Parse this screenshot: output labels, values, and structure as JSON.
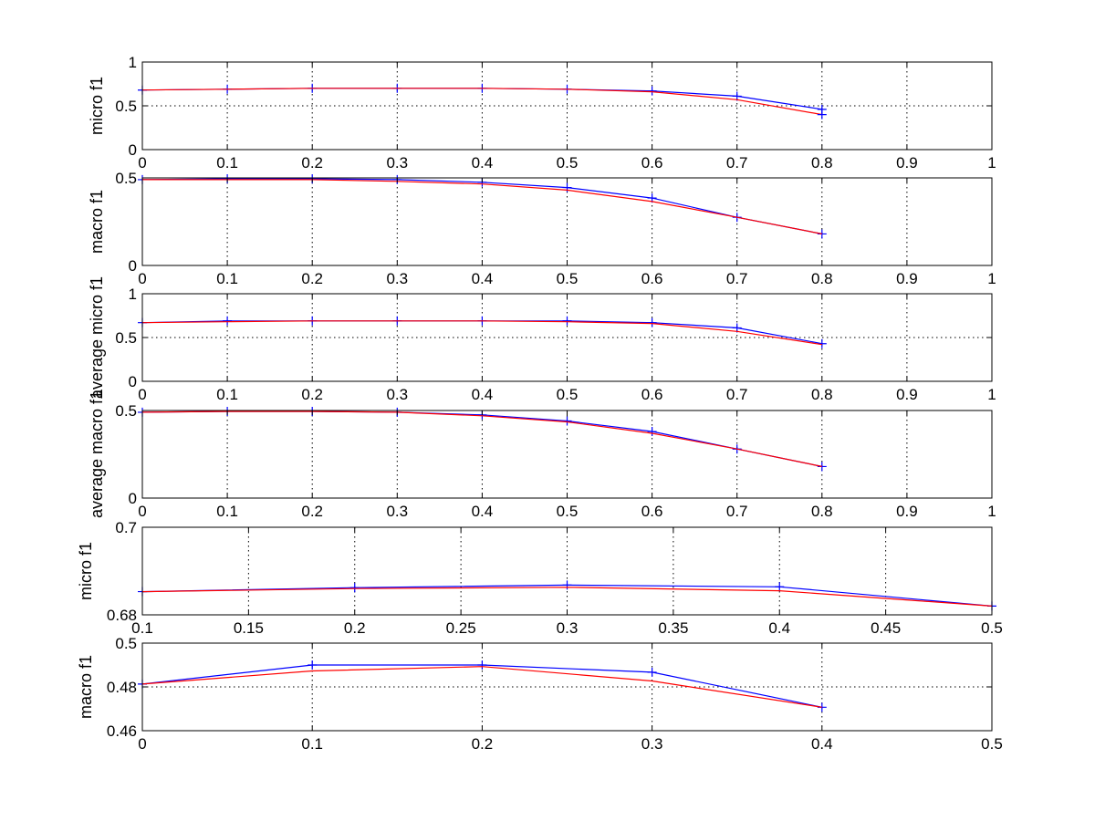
{
  "chart_data": [
    {
      "type": "line",
      "ylabel": "micro f1",
      "xlim": [
        0,
        1
      ],
      "ylim": [
        0,
        1
      ],
      "xticks": [
        0,
        0.1,
        0.2,
        0.3,
        0.4,
        0.5,
        0.6,
        0.7,
        0.8,
        0.9,
        1
      ],
      "xtick_labels": [
        "0",
        "0.1",
        "0.2",
        "0.3",
        "0.4",
        "0.5",
        "0.6",
        "0.7",
        "0.8",
        "0.9",
        "1"
      ],
      "yticks": [
        0,
        0.5,
        1
      ],
      "ytick_labels": [
        "0",
        "0.5",
        "1"
      ],
      "ygrid": [
        0.5
      ],
      "series": [
        {
          "color": "#0000ff",
          "marker": "+",
          "x": [
            0,
            0.1,
            0.2,
            0.3,
            0.4,
            0.5,
            0.6,
            0.7,
            0.8
          ],
          "y": [
            0.68,
            0.69,
            0.7,
            0.7,
            0.7,
            0.69,
            0.67,
            0.61,
            0.46
          ]
        },
        {
          "color": "#ff0000",
          "marker": "none",
          "x": [
            0,
            0.1,
            0.2,
            0.3,
            0.4,
            0.5,
            0.6,
            0.7,
            0.8
          ],
          "y": [
            0.68,
            0.69,
            0.7,
            0.7,
            0.7,
            0.69,
            0.66,
            0.57,
            0.4
          ]
        },
        {
          "color": "#0000ff",
          "marker": "+",
          "x": [
            0.8
          ],
          "y": [
            0.4
          ]
        }
      ]
    },
    {
      "type": "line",
      "ylabel": "macro f1",
      "xlim": [
        0,
        1
      ],
      "ylim": [
        0,
        0.5
      ],
      "xticks": [
        0,
        0.1,
        0.2,
        0.3,
        0.4,
        0.5,
        0.6,
        0.7,
        0.8,
        0.9,
        1
      ],
      "xtick_labels": [
        "0",
        "0.1",
        "0.2",
        "0.3",
        "0.4",
        "0.5",
        "0.6",
        "0.7",
        "0.8",
        "0.9",
        "1"
      ],
      "yticks": [
        0,
        0.5
      ],
      "ytick_labels": [
        "0",
        "0.5"
      ],
      "ygrid": [],
      "series": [
        {
          "color": "#0000ff",
          "marker": "+",
          "x": [
            0,
            0.1,
            0.2,
            0.3,
            0.4,
            0.5,
            0.6,
            0.7,
            0.8
          ],
          "y": [
            0.49,
            0.495,
            0.495,
            0.49,
            0.475,
            0.445,
            0.385,
            0.275,
            0.18
          ]
        },
        {
          "color": "#ff0000",
          "marker": "none",
          "x": [
            0,
            0.1,
            0.2,
            0.3,
            0.4,
            0.5,
            0.6,
            0.7,
            0.8
          ],
          "y": [
            0.49,
            0.49,
            0.49,
            0.48,
            0.465,
            0.43,
            0.365,
            0.275,
            0.18
          ]
        }
      ]
    },
    {
      "type": "line",
      "ylabel": "average micro f1",
      "xlim": [
        0,
        1
      ],
      "ylim": [
        0,
        1
      ],
      "xticks": [
        0,
        0.1,
        0.2,
        0.3,
        0.4,
        0.5,
        0.6,
        0.7,
        0.8,
        0.9,
        1
      ],
      "xtick_labels": [
        "0",
        "0.1",
        "0.2",
        "0.3",
        "0.4",
        "0.5",
        "0.6",
        "0.7",
        "0.8",
        "0.9",
        "1"
      ],
      "yticks": [
        0,
        0.5,
        1
      ],
      "ytick_labels": [
        "0",
        "0.5",
        "1"
      ],
      "ygrid": [
        0.5
      ],
      "series": [
        {
          "color": "#0000ff",
          "marker": "+",
          "x": [
            0,
            0.1,
            0.2,
            0.3,
            0.4,
            0.5,
            0.6,
            0.7,
            0.8
          ],
          "y": [
            0.67,
            0.69,
            0.69,
            0.69,
            0.69,
            0.69,
            0.67,
            0.61,
            0.43
          ]
        },
        {
          "color": "#ff0000",
          "marker": "none",
          "x": [
            0,
            0.1,
            0.2,
            0.3,
            0.4,
            0.5,
            0.6,
            0.7,
            0.8
          ],
          "y": [
            0.67,
            0.68,
            0.69,
            0.69,
            0.69,
            0.68,
            0.66,
            0.57,
            0.42
          ]
        }
      ]
    },
    {
      "type": "line",
      "ylabel": "average macro f1",
      "xlim": [
        0,
        1
      ],
      "ylim": [
        0,
        0.5
      ],
      "xticks": [
        0,
        0.1,
        0.2,
        0.3,
        0.4,
        0.5,
        0.6,
        0.7,
        0.8,
        0.9,
        1
      ],
      "xtick_labels": [
        "0",
        "0.1",
        "0.2",
        "0.3",
        "0.4",
        "0.5",
        "0.6",
        "0.7",
        "0.8",
        "0.9",
        "1"
      ],
      "yticks": [
        0,
        0.5
      ],
      "ytick_labels": [
        "0",
        "0.5"
      ],
      "ygrid": [],
      "series": [
        {
          "color": "#0000ff",
          "marker": "+",
          "x": [
            0,
            0.1,
            0.2,
            0.3,
            0.4,
            0.5,
            0.6,
            0.7,
            0.8
          ],
          "y": [
            0.49,
            0.495,
            0.495,
            0.49,
            0.475,
            0.44,
            0.38,
            0.28,
            0.18
          ]
        },
        {
          "color": "#ff0000",
          "marker": "none",
          "x": [
            0,
            0.1,
            0.2,
            0.3,
            0.4,
            0.5,
            0.6,
            0.7,
            0.8
          ],
          "y": [
            0.49,
            0.495,
            0.495,
            0.49,
            0.47,
            0.435,
            0.37,
            0.28,
            0.18
          ]
        }
      ]
    },
    {
      "type": "line",
      "ylabel": "micro f1",
      "xlim": [
        0.1,
        0.5
      ],
      "ylim": [
        0.68,
        0.7
      ],
      "xticks": [
        0.1,
        0.15,
        0.2,
        0.25,
        0.3,
        0.35,
        0.4,
        0.45,
        0.5
      ],
      "xtick_labels": [
        "0.1",
        "0.15",
        "0.2",
        "0.25",
        "0.3",
        "0.35",
        "0.4",
        "0.45",
        "0.5"
      ],
      "yticks": [
        0.68,
        0.7
      ],
      "ytick_labels": [
        "0.68",
        "0.7"
      ],
      "ygrid": [],
      "series": [
        {
          "color": "#0000ff",
          "marker": "+",
          "x": [
            0.1,
            0.2,
            0.3,
            0.4,
            0.5
          ],
          "y": [
            0.6853,
            0.6862,
            0.6868,
            0.6864,
            0.682
          ]
        },
        {
          "color": "#ff0000",
          "marker": "none",
          "x": [
            0.1,
            0.2,
            0.3,
            0.4,
            0.5
          ],
          "y": [
            0.6853,
            0.686,
            0.6863,
            0.6855,
            0.682
          ]
        }
      ]
    },
    {
      "type": "line",
      "ylabel": "macro f1",
      "xlim": [
        0,
        0.5
      ],
      "ylim": [
        0.46,
        0.5
      ],
      "xticks": [
        0,
        0.1,
        0.2,
        0.3,
        0.4,
        0.5
      ],
      "xtick_labels": [
        "0",
        "0.1",
        "0.2",
        "0.3",
        "0.4",
        "0.5"
      ],
      "yticks": [
        0.46,
        0.48,
        0.5
      ],
      "ytick_labels": [
        "0.46",
        "0.48",
        "0.5"
      ],
      "ygrid": [
        0.48
      ],
      "series": [
        {
          "color": "#0000ff",
          "marker": "+",
          "x": [
            0,
            0.1,
            0.2,
            0.3,
            0.4
          ],
          "y": [
            0.4813,
            0.49,
            0.49,
            0.4867,
            0.4707
          ]
        },
        {
          "color": "#ff0000",
          "marker": "none",
          "x": [
            0,
            0.1,
            0.2,
            0.3,
            0.4
          ],
          "y": [
            0.4813,
            0.4873,
            0.4893,
            0.4827,
            0.4707
          ]
        }
      ]
    }
  ]
}
